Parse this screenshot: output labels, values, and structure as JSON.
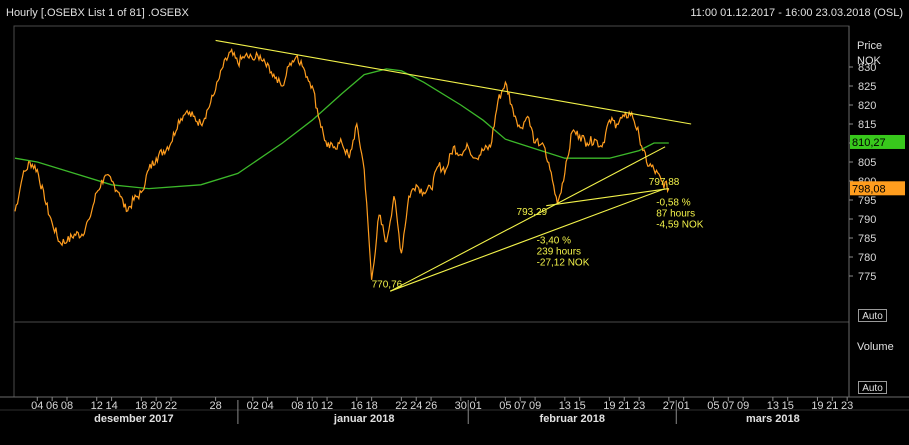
{
  "header": {
    "title": "Hourly [.OSEBX List 1 of 81] .OSEBX",
    "range": "11:00 01.12.2017 - 16:00 23.03.2018 (OSL)"
  },
  "price_panel": {
    "label1": "Price",
    "label2": "NOK",
    "auto": "Auto"
  },
  "volume_panel": {
    "label": "Volume",
    "auto": "Auto"
  },
  "colors": {
    "price": "#ff9d1e",
    "moving_average": "#3cb82a",
    "trendline": "#f2f24a",
    "ma_badge": "#38c81c",
    "price_badge": "#ff9d1e"
  },
  "chart_data": {
    "type": "line",
    "title": "Hourly [.OSEBX List 1 of 81] .OSEBX",
    "ylabel": "Price NOK",
    "ylim": [
      768,
      838
    ],
    "yticks": [
      775,
      780,
      785,
      790,
      795,
      800,
      805,
      810,
      815,
      820,
      825,
      830
    ],
    "x_ticks": [
      {
        "label": "04",
        "day": 3
      },
      {
        "label": "06",
        "day": 5
      },
      {
        "label": "08",
        "day": 7
      },
      {
        "label": "12",
        "day": 11
      },
      {
        "label": "14",
        "day": 13
      },
      {
        "label": "18",
        "day": 17
      },
      {
        "label": "20",
        "day": 19
      },
      {
        "label": "22",
        "day": 21
      },
      {
        "label": "28",
        "day": 27
      },
      {
        "label": "02",
        "day": 32
      },
      {
        "label": "04",
        "day": 34
      },
      {
        "label": "08",
        "day": 38
      },
      {
        "label": "10",
        "day": 40
      },
      {
        "label": "12",
        "day": 42
      },
      {
        "label": "16",
        "day": 46
      },
      {
        "label": "18",
        "day": 48
      },
      {
        "label": "22",
        "day": 52
      },
      {
        "label": "24",
        "day": 54
      },
      {
        "label": "26",
        "day": 56
      },
      {
        "label": "30",
        "day": 60
      },
      {
        "label": "01",
        "day": 62
      },
      {
        "label": "05",
        "day": 66
      },
      {
        "label": "07",
        "day": 68
      },
      {
        "label": "09",
        "day": 70
      },
      {
        "label": "13",
        "day": 74
      },
      {
        "label": "15",
        "day": 76
      },
      {
        "label": "19",
        "day": 80
      },
      {
        "label": "21",
        "day": 82
      },
      {
        "label": "23",
        "day": 84
      },
      {
        "label": "27",
        "day": 88
      },
      {
        "label": "01",
        "day": 90
      },
      {
        "label": "05",
        "day": 94
      },
      {
        "label": "07",
        "day": 96
      },
      {
        "label": "09",
        "day": 98
      },
      {
        "label": "13",
        "day": 102
      },
      {
        "label": "15",
        "day": 104
      },
      {
        "label": "19",
        "day": 108
      },
      {
        "label": "21",
        "day": 110
      },
      {
        "label": "23",
        "day": 112
      }
    ],
    "months": [
      {
        "label": "desember 2017",
        "day": 16
      },
      {
        "label": "januar 2018",
        "day": 47
      },
      {
        "label": "februar 2018",
        "day": 75
      },
      {
        "label": "mars 2018",
        "day": 102
      }
    ],
    "month_separators": [
      30,
      61,
      89
    ],
    "series": [
      {
        "key": "price",
        "points": [
          [
            0,
            792
          ],
          [
            1,
            801
          ],
          [
            2,
            805
          ],
          [
            3,
            803
          ],
          [
            4,
            795
          ],
          [
            5,
            789
          ],
          [
            6,
            784
          ],
          [
            7,
            784
          ],
          [
            8,
            786
          ],
          [
            9,
            786
          ],
          [
            10,
            790
          ],
          [
            11,
            797
          ],
          [
            12,
            801
          ],
          [
            13,
            800
          ],
          [
            14,
            797
          ],
          [
            15,
            792
          ],
          [
            16,
            795
          ],
          [
            17,
            797
          ],
          [
            18,
            803
          ],
          [
            19,
            806
          ],
          [
            20,
            808
          ],
          [
            21,
            810
          ],
          [
            22,
            816
          ],
          [
            23,
            818
          ],
          [
            24,
            817
          ],
          [
            25,
            815
          ],
          [
            26,
            819
          ],
          [
            27,
            824
          ],
          [
            28,
            830
          ],
          [
            29,
            834
          ],
          [
            30,
            831
          ],
          [
            31,
            833
          ],
          [
            32,
            832
          ],
          [
            33,
            833
          ],
          [
            34,
            831
          ],
          [
            35,
            827
          ],
          [
            36,
            825
          ],
          [
            37,
            831
          ],
          [
            38,
            833
          ],
          [
            39,
            829
          ],
          [
            40,
            825
          ],
          [
            41,
            816
          ],
          [
            42,
            809
          ],
          [
            43,
            809
          ],
          [
            44,
            810
          ],
          [
            45,
            806
          ],
          [
            46,
            815
          ],
          [
            47,
            803
          ],
          [
            48,
            774
          ],
          [
            49,
            791
          ],
          [
            50,
            784
          ],
          [
            51,
            796
          ],
          [
            52,
            781
          ],
          [
            53,
            796
          ],
          [
            54,
            799
          ],
          [
            55,
            797
          ],
          [
            56,
            798
          ],
          [
            57,
            804
          ],
          [
            58,
            803
          ],
          [
            59,
            809
          ],
          [
            60,
            807
          ],
          [
            61,
            809
          ],
          [
            62,
            806
          ],
          [
            63,
            808
          ],
          [
            64,
            809
          ],
          [
            65,
            821
          ],
          [
            66,
            826
          ],
          [
            67,
            819
          ],
          [
            68,
            814
          ],
          [
            69,
            817
          ],
          [
            70,
            810
          ],
          [
            71,
            810
          ],
          [
            72,
            803
          ],
          [
            73,
            794
          ],
          [
            74,
            802
          ],
          [
            75,
            813
          ],
          [
            76,
            812
          ],
          [
            77,
            810
          ],
          [
            78,
            811
          ],
          [
            79,
            809
          ],
          [
            80,
            816
          ],
          [
            81,
            815
          ],
          [
            82,
            817
          ],
          [
            83,
            818
          ],
          [
            84,
            812
          ],
          [
            85,
            805
          ],
          [
            86,
            803
          ],
          [
            87,
            800
          ],
          [
            88,
            798
          ]
        ]
      },
      {
        "key": "moving_average",
        "points": [
          [
            0,
            806
          ],
          [
            3,
            805
          ],
          [
            8,
            802
          ],
          [
            13,
            799
          ],
          [
            18,
            798
          ],
          [
            25,
            799
          ],
          [
            30,
            802
          ],
          [
            36,
            810
          ],
          [
            40,
            816
          ],
          [
            44,
            823
          ],
          [
            47,
            828
          ],
          [
            50,
            829.5
          ],
          [
            52,
            829
          ],
          [
            55,
            826
          ],
          [
            60,
            820
          ],
          [
            63,
            816
          ],
          [
            66,
            811
          ],
          [
            70,
            808.5
          ],
          [
            74,
            806
          ],
          [
            80,
            806
          ],
          [
            84,
            808
          ],
          [
            86,
            810
          ],
          [
            88,
            810
          ]
        ]
      }
    ],
    "trendlines": [
      {
        "from": [
          50.5,
          771
        ],
        "to": [
          87.5,
          798
        ]
      },
      {
        "from": [
          50.5,
          771
        ],
        "to": [
          87.5,
          809
        ]
      },
      {
        "from": [
          71.5,
          793.5
        ],
        "to": [
          88,
          798
        ]
      },
      {
        "from": [
          27,
          837
        ],
        "to": [
          91,
          815
        ]
      }
    ],
    "annotations": [
      {
        "lines": [
          "770,76"
        ],
        "x": 48,
        "y": 772,
        "align": "start"
      },
      {
        "lines": [
          "793,29"
        ],
        "x": 67.5,
        "y": 791,
        "align": "start"
      },
      {
        "lines": [
          "797,88"
        ],
        "x": 85.3,
        "y": 799,
        "align": "start"
      },
      {
        "lines": [
          "-3,40 %",
          "239 hours",
          "-27,12 NOK"
        ],
        "x": 70.2,
        "y": 783.5,
        "align": "start"
      },
      {
        "lines": [
          "-0,58 %",
          "87 hours",
          "-4,59 NOK"
        ],
        "x": 86.3,
        "y": 793.5,
        "align": "start"
      }
    ],
    "badges": [
      {
        "label": "810,27",
        "value": 810.27,
        "color_key": "ma_badge"
      },
      {
        "label": "798,08",
        "value": 798.08,
        "color_key": "price_badge"
      }
    ]
  }
}
